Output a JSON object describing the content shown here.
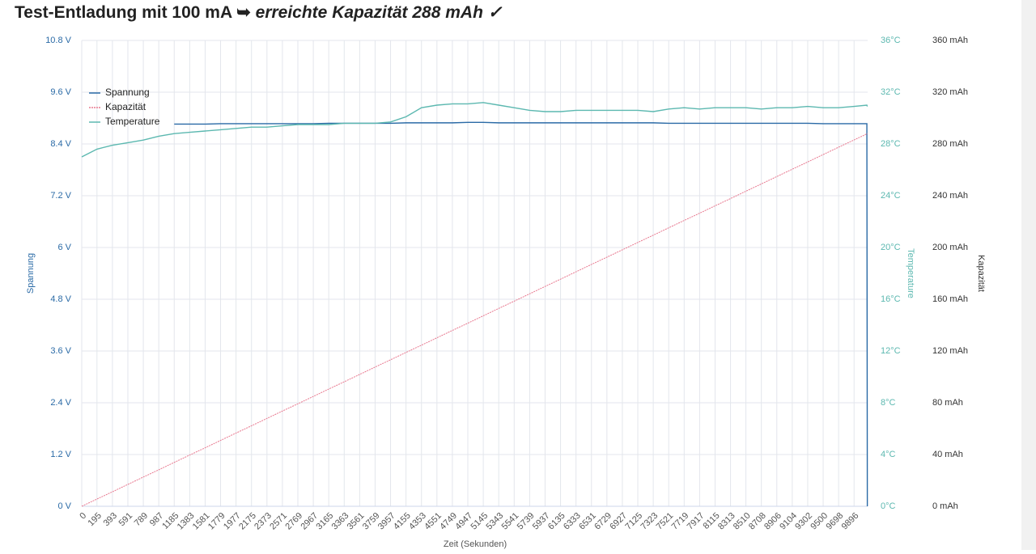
{
  "chart_data": {
    "type": "line",
    "title": "Test-Entladung mit 100 mA ➥",
    "title_highlight": "erreichte Kapazität 288 mAh ✓",
    "x_label": "Zeit (Sekunden)",
    "y_label": "Spannung",
    "y2_label": "Temperature",
    "y3_label": "Kapazität",
    "x": [
      0,
      195,
      393,
      591,
      789,
      987,
      1185,
      1383,
      1581,
      1779,
      1977,
      2175,
      2373,
      2571,
      2769,
      2967,
      3165,
      3363,
      3561,
      3759,
      3957,
      4155,
      4353,
      4551,
      4749,
      4947,
      5145,
      5343,
      5541,
      5739,
      5937,
      6135,
      6333,
      6531,
      6729,
      6927,
      7125,
      7323,
      7521,
      7719,
      7917,
      8115,
      8313,
      8510,
      8708,
      8906,
      9104,
      9302,
      9500,
      9698,
      9896,
      10060,
      10066
    ],
    "xlim": [
      0,
      10070
    ],
    "xticks": [
      0,
      195,
      393,
      591,
      789,
      987,
      1185,
      1383,
      1581,
      1779,
      1977,
      2175,
      2373,
      2571,
      2769,
      2967,
      3165,
      3363,
      3561,
      3759,
      3957,
      4155,
      4353,
      4551,
      4749,
      4947,
      5145,
      5343,
      5541,
      5739,
      5937,
      6135,
      6333,
      6531,
      6729,
      6927,
      7125,
      7323,
      7521,
      7719,
      7917,
      8115,
      8313,
      8510,
      8708,
      8906,
      9104,
      9302,
      9500,
      9698,
      9896
    ],
    "ylim": [
      0,
      10.8
    ],
    "yticks": [
      {
        "value": 0,
        "label": "0 V"
      },
      {
        "value": 1.2,
        "label": "1.2 V"
      },
      {
        "value": 2.4,
        "label": "2.4 V"
      },
      {
        "value": 3.6,
        "label": "3.6 V"
      },
      {
        "value": 4.8,
        "label": "4.8 V"
      },
      {
        "value": 6,
        "label": "6 V"
      },
      {
        "value": 7.2,
        "label": "7.2 V"
      },
      {
        "value": 8.4,
        "label": "8.4 V"
      },
      {
        "value": 9.6,
        "label": "9.6 V"
      },
      {
        "value": 10.8,
        "label": "10.8 V"
      }
    ],
    "y2lim": [
      0,
      36
    ],
    "y2ticks": [
      {
        "value": 0,
        "label": "0°C"
      },
      {
        "value": 4,
        "label": "4°C"
      },
      {
        "value": 8,
        "label": "8°C"
      },
      {
        "value": 12,
        "label": "12°C"
      },
      {
        "value": 16,
        "label": "16°C"
      },
      {
        "value": 20,
        "label": "20°C"
      },
      {
        "value": 24,
        "label": "24°C"
      },
      {
        "value": 28,
        "label": "28°C"
      },
      {
        "value": 32,
        "label": "32°C"
      },
      {
        "value": 36,
        "label": "36°C"
      }
    ],
    "y3lim": [
      0,
      360
    ],
    "y3ticks": [
      {
        "value": 0,
        "label": "0 mAh"
      },
      {
        "value": 40,
        "label": "40 mAh"
      },
      {
        "value": 80,
        "label": "80 mAh"
      },
      {
        "value": 120,
        "label": "120 mAh"
      },
      {
        "value": 160,
        "label": "160 mAh"
      },
      {
        "value": 200,
        "label": "200 mAh"
      },
      {
        "value": 240,
        "label": "240 mAh"
      },
      {
        "value": 280,
        "label": "280 mAh"
      },
      {
        "value": 320,
        "label": "320 mAh"
      },
      {
        "value": 360,
        "label": "360 mAh"
      }
    ],
    "grid": true,
    "legend": "top-left",
    "series": [
      {
        "name": "Spannung",
        "color": "#2a6aa6",
        "axis": "y",
        "values": [
          null,
          null,
          null,
          null,
          null,
          null,
          8.86,
          8.86,
          8.86,
          8.87,
          8.87,
          8.87,
          8.87,
          8.87,
          8.87,
          8.87,
          8.88,
          8.88,
          8.88,
          8.88,
          8.88,
          8.89,
          8.89,
          8.89,
          8.89,
          8.9,
          8.9,
          8.89,
          8.89,
          8.89,
          8.89,
          8.89,
          8.89,
          8.89,
          8.89,
          8.89,
          8.89,
          8.89,
          8.88,
          8.88,
          8.88,
          8.88,
          8.88,
          8.88,
          8.88,
          8.88,
          8.88,
          8.88,
          8.87,
          8.87,
          8.87,
          8.87,
          0
        ]
      },
      {
        "name": "Kapazität",
        "color": "#e8788f",
        "axis": "y3",
        "values": [
          0,
          5.6,
          11.2,
          16.9,
          22.6,
          28.2,
          33.9,
          39.6,
          45.2,
          50.9,
          56.6,
          62.2,
          67.9,
          73.6,
          79.2,
          84.9,
          90.6,
          96.2,
          101.9,
          107.6,
          113.2,
          118.9,
          124.5,
          130.2,
          135.9,
          141.5,
          147.2,
          152.9,
          158.5,
          164.2,
          169.9,
          175.5,
          181.2,
          186.9,
          192.5,
          198.2,
          203.9,
          209.5,
          215.2,
          220.9,
          226.5,
          232.2,
          237.8,
          243.5,
          249.1,
          254.8,
          260.5,
          266.1,
          271.8,
          277.5,
          283.1,
          287.8,
          288
        ]
      },
      {
        "name": "Temperature",
        "color": "#5cb8b0",
        "axis": "y2",
        "values": [
          27.0,
          27.6,
          27.9,
          28.1,
          28.3,
          28.6,
          28.8,
          28.9,
          29.0,
          29.1,
          29.2,
          29.3,
          29.3,
          29.4,
          29.5,
          29.5,
          29.5,
          29.6,
          29.6,
          29.6,
          29.7,
          30.1,
          30.8,
          31.0,
          31.1,
          31.1,
          31.2,
          31.0,
          30.8,
          30.6,
          30.5,
          30.5,
          30.6,
          30.6,
          30.6,
          30.6,
          30.6,
          30.5,
          30.7,
          30.8,
          30.7,
          30.8,
          30.8,
          30.8,
          30.7,
          30.8,
          30.8,
          30.9,
          30.8,
          30.8,
          30.9,
          31.0,
          30.9
        ]
      }
    ]
  }
}
